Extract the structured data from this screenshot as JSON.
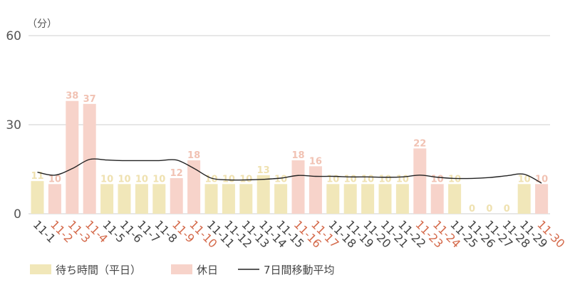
{
  "chart_data": {
    "type": "bar",
    "unit_label": "（分）",
    "ylim": [
      0,
      60
    ],
    "yticks": [
      "0",
      "30",
      "60"
    ],
    "grid": true,
    "legend_position": "bottom-left",
    "categories": [
      "11-1",
      "11-2",
      "11-3",
      "11-4",
      "11-5",
      "11-6",
      "11-7",
      "11-8",
      "11-9",
      "11-10",
      "11-11",
      "11-12",
      "11-13",
      "11-14",
      "11-15",
      "11-16",
      "11-17",
      "11-18",
      "11-19",
      "11-20",
      "11-21",
      "11-22",
      "11-23",
      "11-24",
      "11-25",
      "11-26",
      "11-27",
      "11-28",
      "11-29",
      "11-30"
    ],
    "values": [
      11,
      10,
      38,
      37,
      10,
      10,
      10,
      10,
      12,
      18,
      10,
      10,
      10,
      13,
      10,
      18,
      16,
      10,
      10,
      10,
      10,
      10,
      22,
      10,
      10,
      0,
      0,
      0,
      10,
      10
    ],
    "day_type": [
      "weekday",
      "holiday",
      "holiday",
      "holiday",
      "weekday",
      "weekday",
      "weekday",
      "weekday",
      "holiday",
      "holiday",
      "weekday",
      "weekday",
      "weekday",
      "weekday",
      "weekday",
      "holiday",
      "holiday",
      "weekday",
      "weekday",
      "weekday",
      "weekday",
      "weekday",
      "holiday",
      "holiday",
      "weekday",
      "weekday",
      "weekday",
      "weekday",
      "weekday",
      "holiday"
    ],
    "moving_average": [
      14.0,
      13.0,
      15.2,
      18.3,
      18.1,
      17.9,
      17.9,
      17.9,
      18.1,
      15.3,
      12.0,
      11.4,
      11.4,
      11.6,
      12.0,
      12.9,
      12.6,
      12.6,
      12.4,
      12.4,
      12.3,
      12.4,
      13.0,
      12.3,
      11.9,
      11.9,
      12.2,
      12.8,
      13.3,
      10.3
    ],
    "colors": {
      "weekday": "#f1e7b9",
      "holiday": "#f7d3ca",
      "weekday_label": "#efe1b0",
      "holiday_label": "#f1c2b3",
      "weekday_tick": "#444444",
      "holiday_tick": "#d4694a",
      "line": "#222222"
    },
    "legend": [
      {
        "key": "weekday",
        "label": "待ち時間（平日）"
      },
      {
        "key": "holiday",
        "label": "休日"
      },
      {
        "key": "line",
        "label": "7日間移動平均"
      }
    ]
  }
}
